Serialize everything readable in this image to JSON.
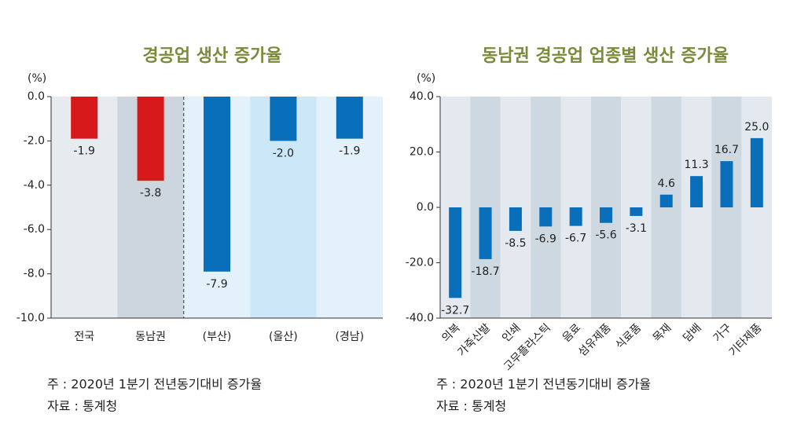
{
  "chart_data": [
    {
      "type": "bar",
      "title": "경공업 생산 증가율",
      "y_label": "(%)",
      "categories": [
        "전국",
        "동남권",
        "(부산)",
        "(울산)",
        "(경남)"
      ],
      "values": [
        -1.9,
        -3.8,
        -7.9,
        -2.0,
        -1.9
      ],
      "value_labels": [
        "-1.9",
        "-3.8",
        "-7.9",
        "-2.0",
        "-1.9"
      ],
      "colors": [
        "#d7191c",
        "#d7191c",
        "#0a6fba",
        "#0a6fba",
        "#0a6fba"
      ],
      "ylim": [
        -10,
        0
      ],
      "yticks": [
        {
          "value": 0,
          "label": "0.0"
        },
        {
          "value": -2,
          "label": "-2.0"
        },
        {
          "value": -4,
          "label": "-4.0"
        },
        {
          "value": -6,
          "label": "-6.0"
        },
        {
          "value": -8,
          "label": "-8.0"
        },
        {
          "value": -10,
          "label": "-10.0"
        }
      ],
      "notes": [
        "주 : 2020년 1분기 전년동기대비 증가율",
        "자료 : 통계청"
      ]
    },
    {
      "type": "bar",
      "title": "동남권 경공업 업종별 생산 증가율",
      "y_label": "(%)",
      "categories": [
        "의복",
        "가죽신발",
        "인쇄",
        "고무플라스틱",
        "음료",
        "섬유제품",
        "식료품",
        "목재",
        "담배",
        "가구",
        "기타제품"
      ],
      "values": [
        -32.7,
        -18.7,
        -8.5,
        -6.9,
        -6.7,
        -5.6,
        -3.1,
        4.6,
        11.3,
        16.7,
        25.0
      ],
      "value_labels": [
        "-32.7",
        "-18.7",
        "-8.5",
        "-6.9",
        "-6.7",
        "-5.6",
        "-3.1",
        "4.6",
        "11.3",
        "16.7",
        "25.0"
      ],
      "color": "#0a6fba",
      "ylim": [
        -40,
        40
      ],
      "yticks": [
        {
          "value": 40,
          "label": "40.0"
        },
        {
          "value": 20,
          "label": "20.0"
        },
        {
          "value": 0,
          "label": "0.0"
        },
        {
          "value": -20,
          "label": "-20.0"
        },
        {
          "value": -40,
          "label": "-40.0"
        }
      ],
      "notes": [
        "주 : 2020년 1분기 전년동기대비 증가율",
        "자료 : 통계청"
      ]
    }
  ]
}
